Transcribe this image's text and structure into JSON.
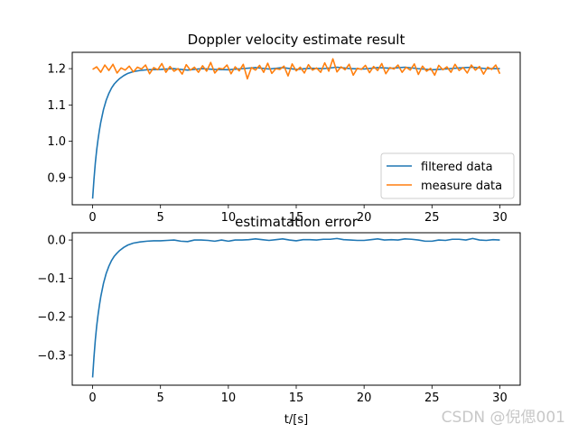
{
  "chart_data": [
    {
      "type": "line",
      "title": "Doppler velocity estimate result",
      "xlabel": "",
      "ylabel": "",
      "xlim": [
        -1.5,
        31.5
      ],
      "ylim": [
        0.825,
        1.245
      ],
      "xticks": [
        0,
        5,
        10,
        15,
        20,
        25,
        30
      ],
      "xtick_labels": [
        "0",
        "5",
        "10",
        "15",
        "20",
        "25",
        "30"
      ],
      "yticks": [
        0.9,
        1.0,
        1.1,
        1.2
      ],
      "ytick_labels": [
        "0.9",
        "1.0",
        "1.1",
        "1.2"
      ],
      "legend": {
        "position": "lower-right",
        "entries": [
          "filtered data",
          "measure data"
        ]
      },
      "series": [
        {
          "name": "filtered data",
          "color": "#1f77b4",
          "x": [
            0,
            0.1,
            0.2,
            0.3,
            0.4,
            0.5,
            0.6,
            0.8,
            1.0,
            1.2,
            1.4,
            1.6,
            1.8,
            2.0,
            2.3,
            2.6,
            3.0,
            3.5,
            4.0,
            5,
            6,
            7,
            8,
            9,
            10,
            11,
            12,
            13,
            14,
            15,
            16,
            17,
            18,
            19,
            20,
            21,
            22,
            23,
            24,
            25,
            26,
            27,
            28,
            29,
            30
          ],
          "values": [
            0.842,
            0.895,
            0.94,
            0.976,
            1.005,
            1.03,
            1.052,
            1.087,
            1.113,
            1.132,
            1.147,
            1.158,
            1.166,
            1.173,
            1.181,
            1.187,
            1.192,
            1.195,
            1.197,
            1.198,
            1.2,
            1.196,
            1.2,
            1.198,
            1.197,
            1.2,
            1.203,
            1.199,
            1.203,
            1.198,
            1.201,
            1.2,
            1.204,
            1.2,
            1.199,
            1.203,
            1.201,
            1.204,
            1.2,
            1.197,
            1.199,
            1.202,
            1.204,
            1.2,
            1.2
          ]
        },
        {
          "name": "measure data",
          "color": "#ff7f0e",
          "x": [
            0,
            0.3,
            0.6,
            0.9,
            1.2,
            1.5,
            1.8,
            2.1,
            2.4,
            2.7,
            3.0,
            3.3,
            3.6,
            3.9,
            4.2,
            4.5,
            4.8,
            5.1,
            5.4,
            5.7,
            6.0,
            6.3,
            6.6,
            6.9,
            7.2,
            7.5,
            7.8,
            8.1,
            8.4,
            8.7,
            9.0,
            9.3,
            9.6,
            9.9,
            10.2,
            10.5,
            10.8,
            11.1,
            11.4,
            11.7,
            12.0,
            12.3,
            12.6,
            12.9,
            13.2,
            13.5,
            13.8,
            14.1,
            14.4,
            14.7,
            15.0,
            15.3,
            15.6,
            15.9,
            16.2,
            16.5,
            16.8,
            17.1,
            17.4,
            17.7,
            18.0,
            18.3,
            18.6,
            18.9,
            19.2,
            19.5,
            19.8,
            20.1,
            20.4,
            20.7,
            21.0,
            21.3,
            21.6,
            21.9,
            22.2,
            22.5,
            22.8,
            23.1,
            23.4,
            23.7,
            24.0,
            24.3,
            24.6,
            24.9,
            25.2,
            25.5,
            25.8,
            26.1,
            26.4,
            26.7,
            27.0,
            27.3,
            27.6,
            27.9,
            28.2,
            28.5,
            28.8,
            29.1,
            29.4,
            29.7,
            30.0
          ],
          "values": [
            1.198,
            1.205,
            1.19,
            1.21,
            1.195,
            1.212,
            1.188,
            1.202,
            1.196,
            1.207,
            1.191,
            1.204,
            1.199,
            1.21,
            1.186,
            1.203,
            1.197,
            1.214,
            1.19,
            1.206,
            1.193,
            1.2,
            1.185,
            1.211,
            1.196,
            1.204,
            1.19,
            1.208,
            1.193,
            1.217,
            1.188,
            1.201,
            1.199,
            1.21,
            1.186,
            1.205,
            1.194,
            1.212,
            1.172,
            1.203,
            1.196,
            1.209,
            1.19,
            1.215,
            1.187,
            1.2,
            1.198,
            1.207,
            1.18,
            1.213,
            1.194,
            1.204,
            1.188,
            1.211,
            1.196,
            1.202,
            1.19,
            1.216,
            1.193,
            1.227,
            1.191,
            1.205,
            1.197,
            1.212,
            1.182,
            1.201,
            1.198,
            1.209,
            1.189,
            1.206,
            1.195,
            1.214,
            1.186,
            1.203,
            1.199,
            1.21,
            1.19,
            1.204,
            1.196,
            1.213,
            1.184,
            1.207,
            1.193,
            1.201,
            1.182,
            1.209,
            1.197,
            1.205,
            1.19,
            1.212,
            1.195,
            1.203,
            1.188,
            1.21,
            1.196,
            1.206,
            1.185,
            1.204,
            1.198,
            1.21,
            1.186
          ]
        }
      ]
    },
    {
      "type": "line",
      "title": "estimatation error",
      "xlabel": "t/[s]",
      "ylabel": "",
      "xlim": [
        -1.5,
        31.5
      ],
      "ylim": [
        -0.378,
        0.019
      ],
      "xticks": [
        0,
        5,
        10,
        15,
        20,
        25,
        30
      ],
      "xtick_labels": [
        "0",
        "5",
        "10",
        "15",
        "20",
        "25",
        "30"
      ],
      "yticks": [
        -0.3,
        -0.2,
        -0.1,
        0.0
      ],
      "ytick_labels": [
        "−0.3",
        "−0.2",
        "−0.1",
        "0.0"
      ],
      "series": [
        {
          "name": "estimation error",
          "color": "#1f77b4",
          "x": [
            0,
            0.1,
            0.2,
            0.3,
            0.4,
            0.5,
            0.6,
            0.8,
            1.0,
            1.2,
            1.4,
            1.6,
            1.8,
            2.0,
            2.3,
            2.6,
            3.0,
            3.5,
            4.0,
            4.5,
            5,
            5.5,
            6,
            6.5,
            7,
            7.5,
            8,
            8.5,
            9,
            9.5,
            10,
            10.5,
            11,
            11.5,
            12,
            12.5,
            13,
            13.5,
            14,
            14.5,
            15,
            15.5,
            16,
            16.5,
            17,
            17.5,
            18,
            18.5,
            19,
            19.5,
            20,
            20.5,
            21,
            21.5,
            22,
            22.5,
            23,
            23.5,
            24,
            24.5,
            25,
            25.5,
            26,
            26.5,
            27,
            27.5,
            28,
            28.5,
            29,
            29.5,
            30
          ],
          "values": [
            -0.358,
            -0.305,
            -0.26,
            -0.224,
            -0.195,
            -0.17,
            -0.148,
            -0.113,
            -0.087,
            -0.068,
            -0.053,
            -0.042,
            -0.034,
            -0.027,
            -0.019,
            -0.013,
            -0.008,
            -0.005,
            -0.003,
            -0.002,
            -0.002,
            -0.001,
            0.0,
            -0.003,
            -0.004,
            0.0,
            0.0,
            -0.001,
            -0.003,
            0.0,
            -0.003,
            0.0,
            0.0,
            0.001,
            0.003,
            0.001,
            -0.001,
            0.001,
            0.003,
            0.0,
            -0.002,
            0.001,
            0.001,
            0.0,
            0.002,
            0.002,
            0.004,
            0.001,
            0.0,
            -0.001,
            -0.001,
            0.001,
            0.003,
            0.0,
            0.001,
            0.0,
            0.003,
            0.002,
            0.0,
            -0.003,
            -0.003,
            0.0,
            -0.001,
            0.002,
            0.002,
            0.0,
            0.004,
            0.0,
            -0.001,
            0.001,
            0.0
          ]
        }
      ]
    }
  ],
  "watermark": "CSDN @倪偲001"
}
